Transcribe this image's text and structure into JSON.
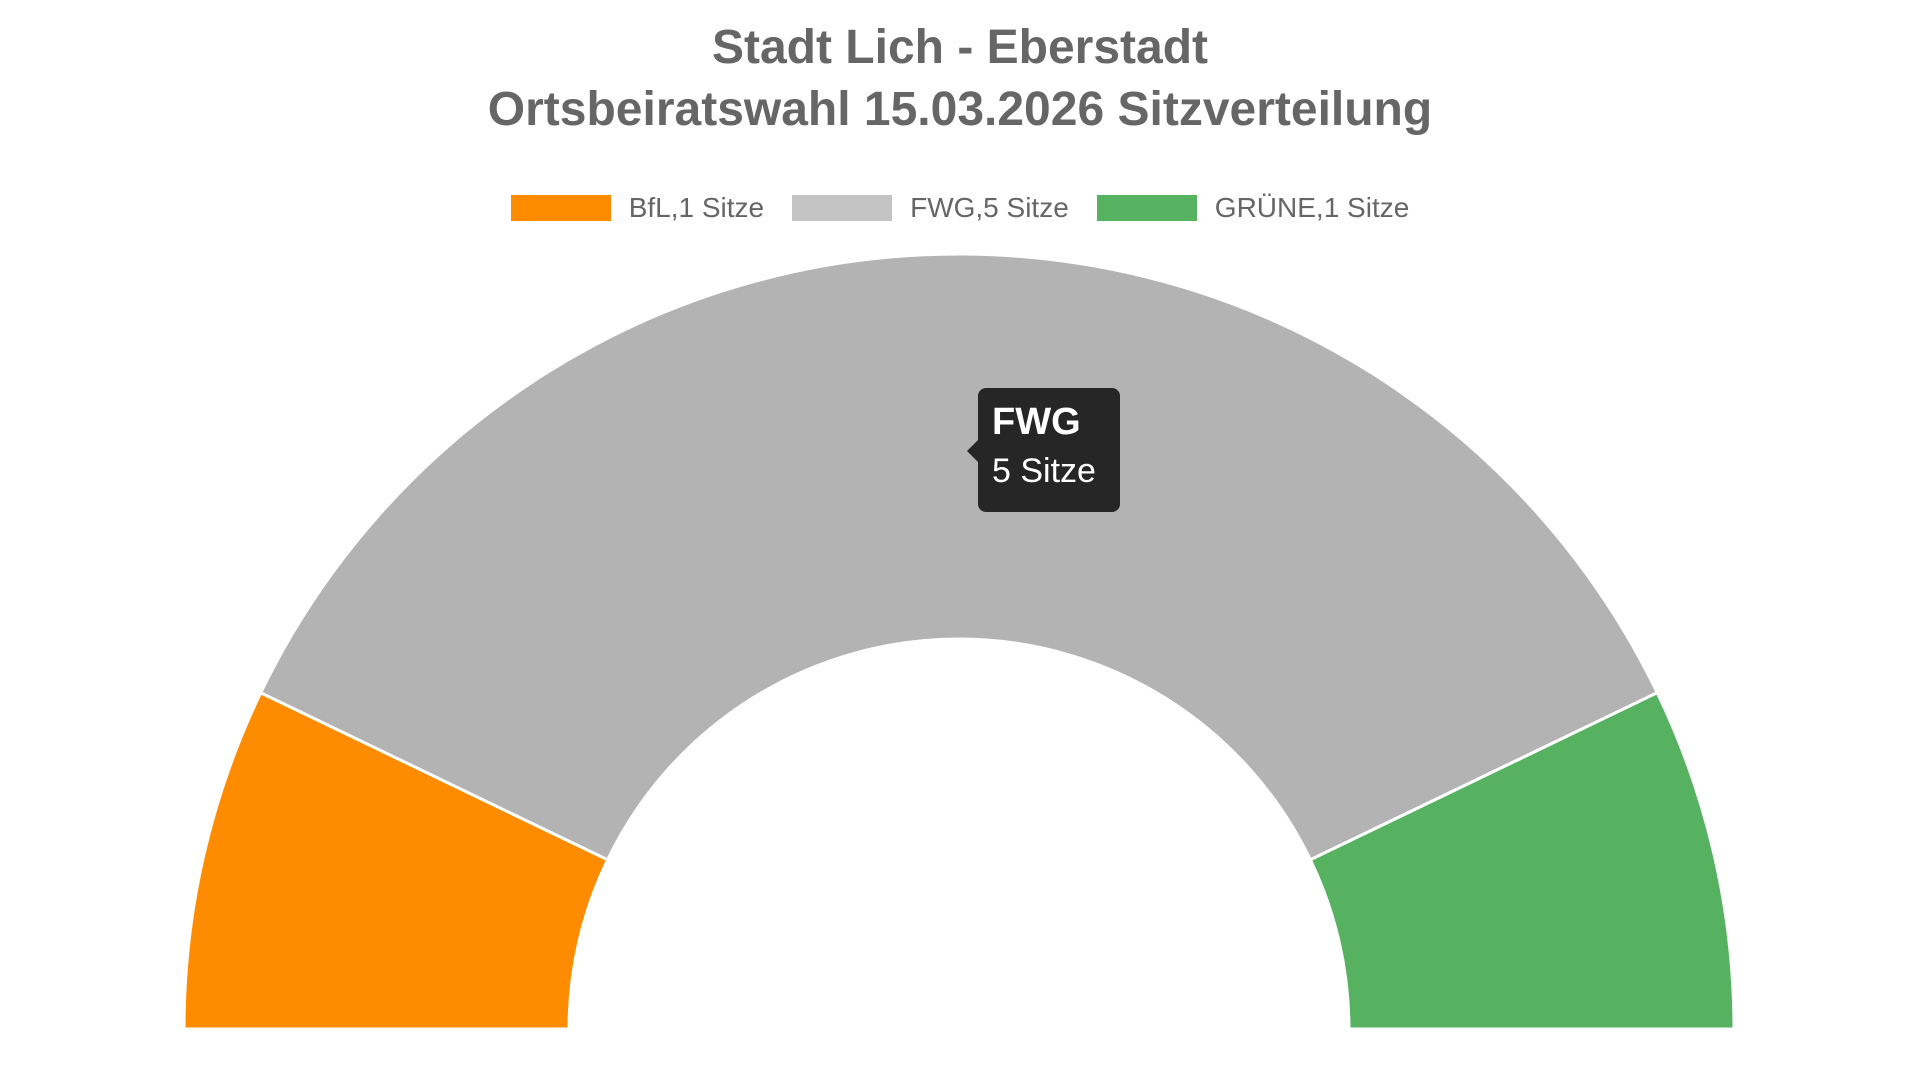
{
  "title": {
    "line1": "Stadt Lich - Eberstadt",
    "line2": "Ortsbeiratswahl 15.03.2026 Sitzverteilung"
  },
  "legend": {
    "items": [
      {
        "label": "BfL,1 Sitze",
        "color": "#FF8C00"
      },
      {
        "label": "FWG,5 Sitze",
        "color": "#B3B3B3"
      },
      {
        "label": "GRÜNE,1 Sitze",
        "color": "#56B260"
      }
    ]
  },
  "tooltip": {
    "title": "FWG",
    "body": "5 Sitze"
  },
  "chart_data": {
    "type": "pie",
    "subtype": "half-donut (parliament seat distribution)",
    "title": "Stadt Lich - Eberstadt Ortsbeiratswahl 15.03.2026 Sitzverteilung",
    "categories": [
      "BfL",
      "FWG",
      "GRÜNE"
    ],
    "values": [
      1,
      5,
      1
    ],
    "unit": "Sitze",
    "total_seats": 7,
    "colors": [
      "#FF8C00",
      "#B3B3B3",
      "#56B260"
    ],
    "legend_position": "top",
    "tooltip_active": {
      "category": "FWG",
      "value": "5 Sitze"
    }
  }
}
